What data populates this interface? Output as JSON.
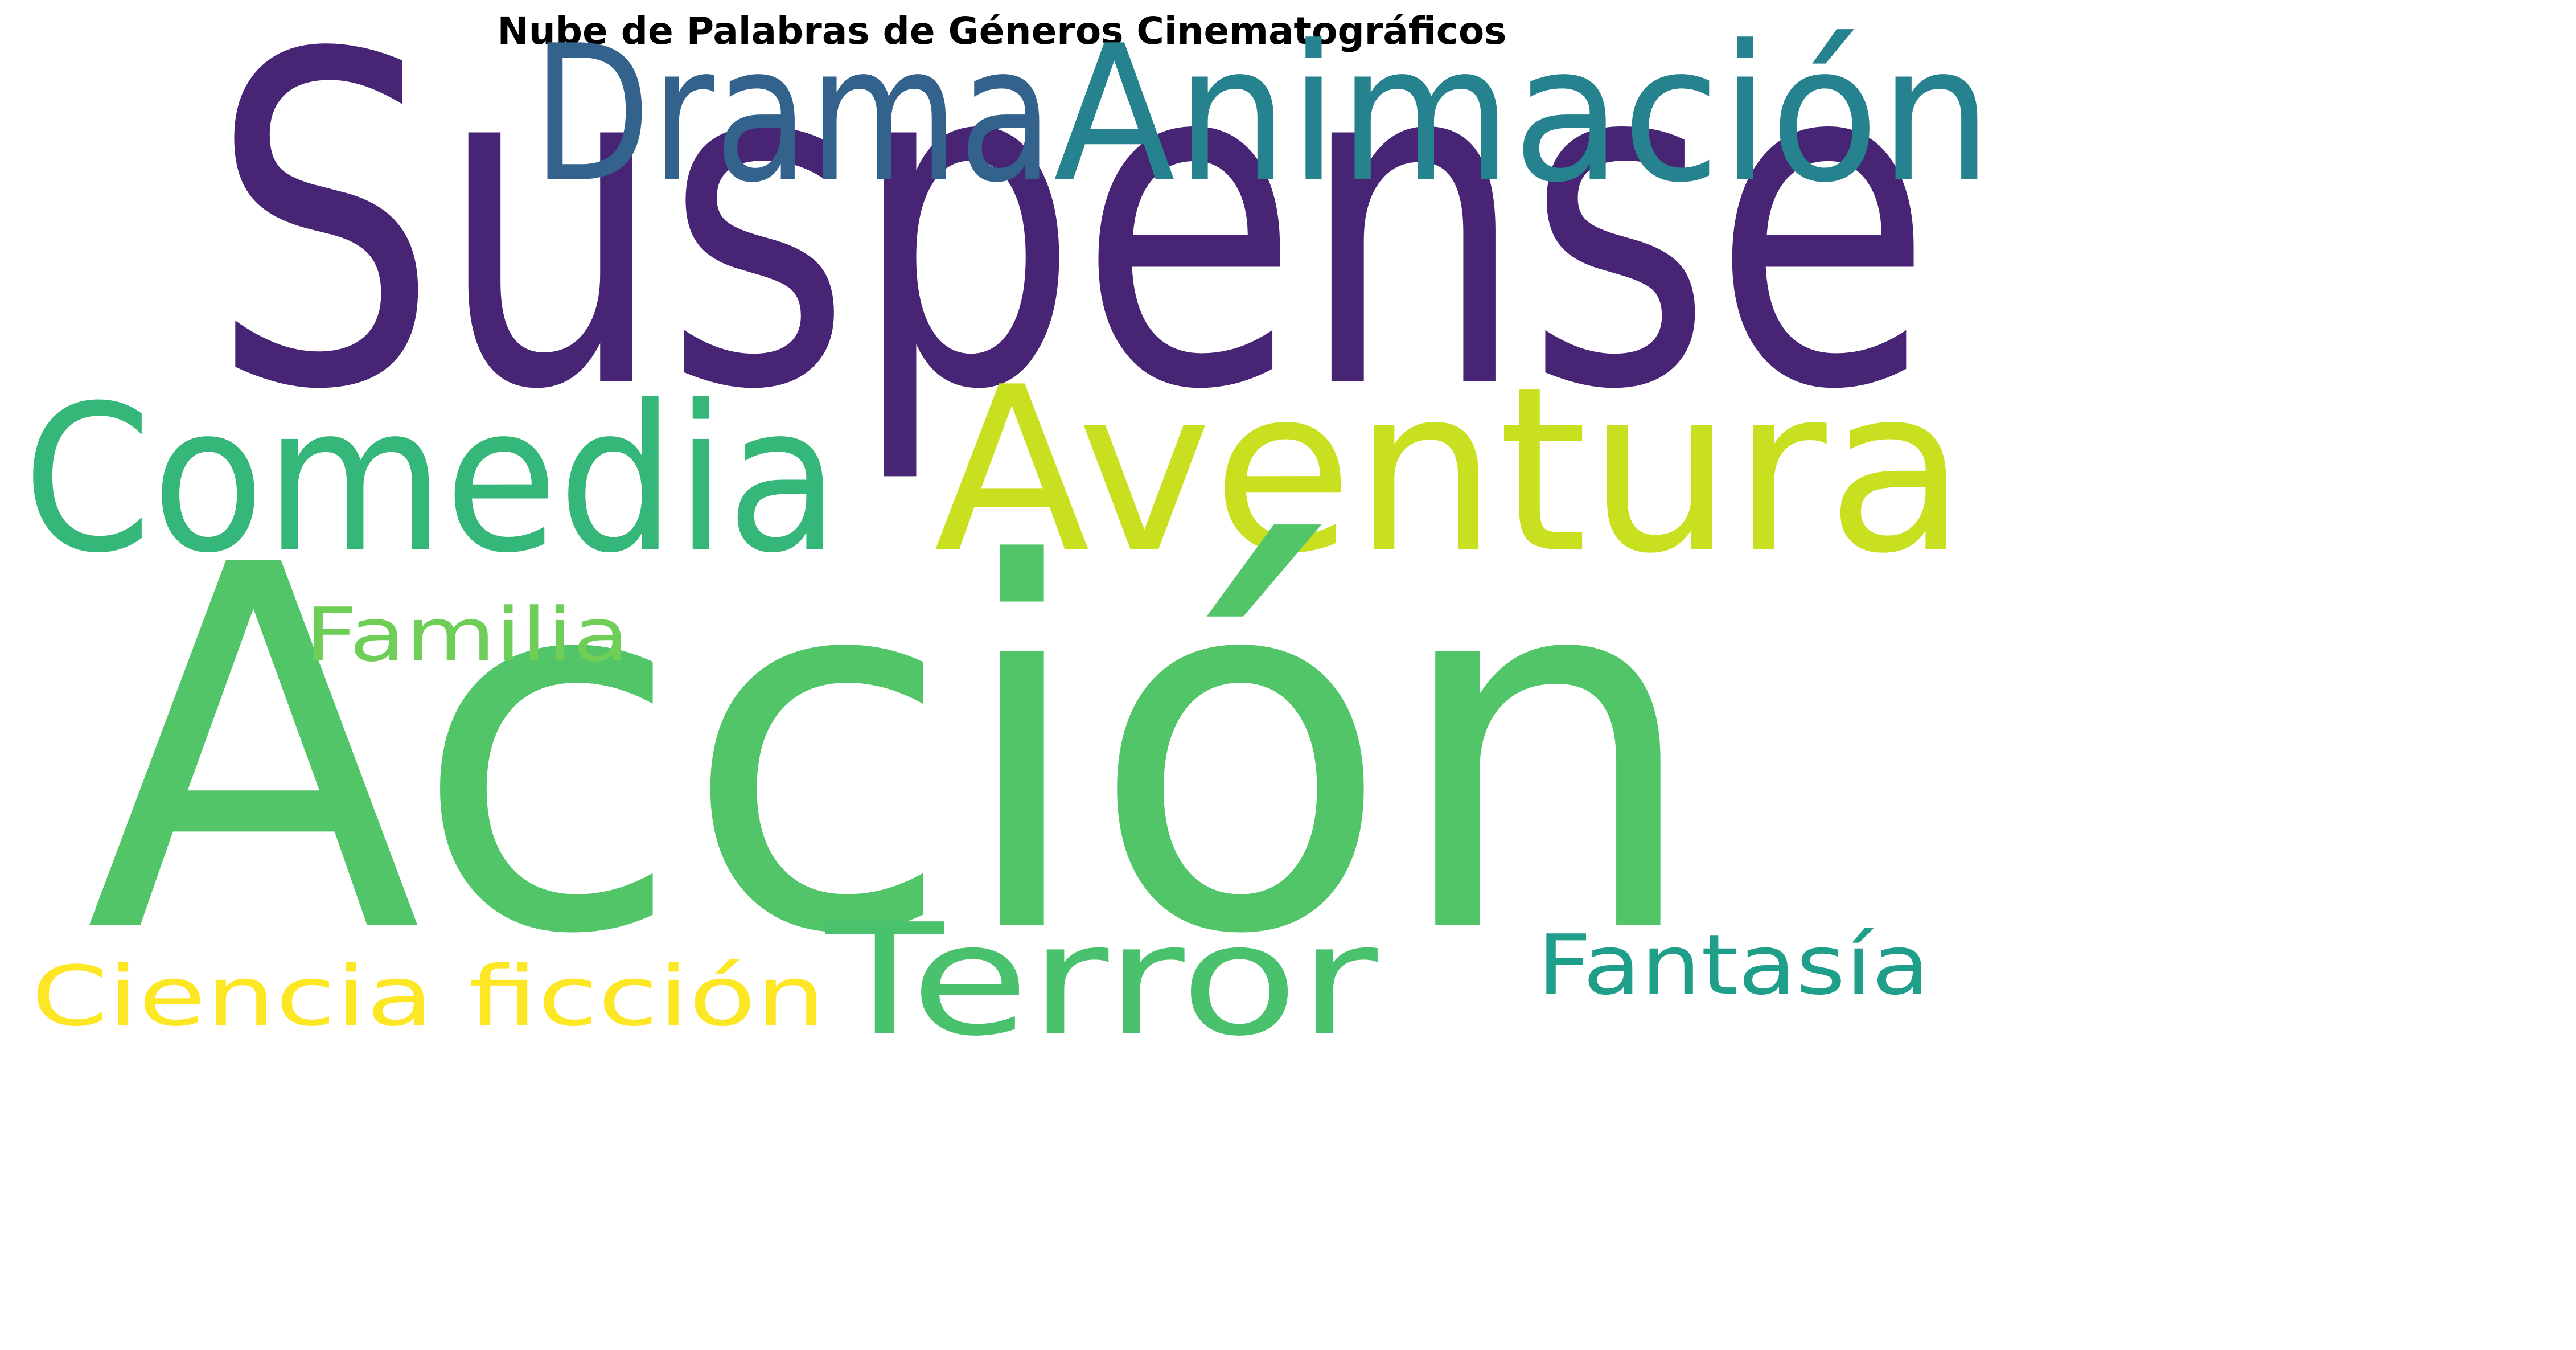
{
  "title": "Nube de Palabras de Géneros Cinematográficos",
  "words": [
    {
      "text": "Suspense",
      "color": "#482475"
    },
    {
      "text": "Drama",
      "color": "#33638d"
    },
    {
      "text": "Animación",
      "color": "#26828e"
    },
    {
      "text": "Comedia",
      "color": "#35b779"
    },
    {
      "text": "Aventura",
      "color": "#c8e020"
    },
    {
      "text": "Acción",
      "color": "#52c569"
    },
    {
      "text": "Familia",
      "color": "#6ece58"
    },
    {
      "text": "Terror",
      "color": "#4ac16d"
    },
    {
      "text": "Fantasía",
      "color": "#1f9e89"
    },
    {
      "text": "Ciencia ficción",
      "color": "#fde725"
    }
  ]
}
